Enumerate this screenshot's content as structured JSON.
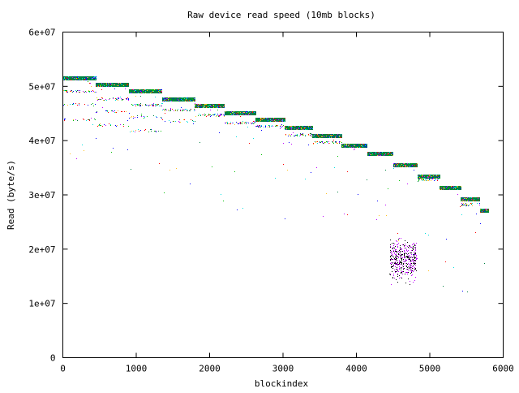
{
  "chart_data": {
    "type": "scatter",
    "title": "Raw device read speed (10mb blocks)",
    "xlabel": "blockindex",
    "ylabel": "Read (byte/s)",
    "xlim": [
      0,
      6000
    ],
    "ylim": [
      0,
      60000000
    ],
    "xticks": [
      "0",
      "1000",
      "2000",
      "3000",
      "4000",
      "5000",
      "6000"
    ],
    "yticks": [
      "0",
      "1e+07",
      "2e+07",
      "3e+07",
      "4e+07",
      "5e+07",
      "6e+07"
    ],
    "grid": false,
    "legend": "none",
    "series_colors": [
      "#008040",
      "#ffc020",
      "#0000ff",
      "#ff0000",
      "#c000ff",
      "#00e0e0",
      "#00c000"
    ],
    "levels": [
      {
        "x": [
          0,
          450
        ],
        "y": 51500000,
        "secondary": [
          49200000,
          46800000,
          44000000
        ]
      },
      {
        "x": [
          450,
          900
        ],
        "y": 50300000,
        "secondary": [
          47800000,
          45500000,
          43000000
        ]
      },
      {
        "x": [
          900,
          1350
        ],
        "y": 49100000,
        "secondary": [
          46700000,
          44500000,
          42000000
        ]
      },
      {
        "x": [
          1350,
          1800
        ],
        "y": 47600000,
        "secondary": [
          45800000,
          43800000
        ]
      },
      {
        "x": [
          1800,
          2200
        ],
        "y": 46400000,
        "secondary": [
          44800000
        ]
      },
      {
        "x": [
          2200,
          2620
        ],
        "y": 45100000,
        "secondary": [
          43400000
        ]
      },
      {
        "x": [
          2620,
          3020
        ],
        "y": 43900000,
        "secondary": [
          42800000
        ]
      },
      {
        "x": [
          3020,
          3400
        ],
        "y": 42400000,
        "secondary": [
          41200000
        ]
      },
      {
        "x": [
          3400,
          3800
        ],
        "y": 40900000,
        "secondary": [
          39800000
        ]
      },
      {
        "x": [
          3800,
          4150
        ],
        "y": 39100000,
        "secondary": []
      },
      {
        "x": [
          4150,
          4500
        ],
        "y": 37600000,
        "secondary": []
      },
      {
        "x": [
          4500,
          4830
        ],
        "y": 35500000,
        "secondary": []
      },
      {
        "x": [
          4830,
          5130
        ],
        "y": 33500000,
        "secondary": [
          32900000
        ]
      },
      {
        "x": [
          5130,
          5420
        ],
        "y": 31300000,
        "secondary": []
      },
      {
        "x": [
          5420,
          5680
        ],
        "y": 29200000,
        "secondary": [
          28400000
        ]
      },
      {
        "x": [
          5680,
          5800
        ],
        "y": 27200000,
        "secondary": []
      }
    ],
    "clusters": [
      {
        "x": [
          4450,
          4820
        ],
        "y": [
          13000000,
          23000000
        ],
        "colors": [
          "#000000",
          "#c000ff"
        ]
      }
    ]
  }
}
